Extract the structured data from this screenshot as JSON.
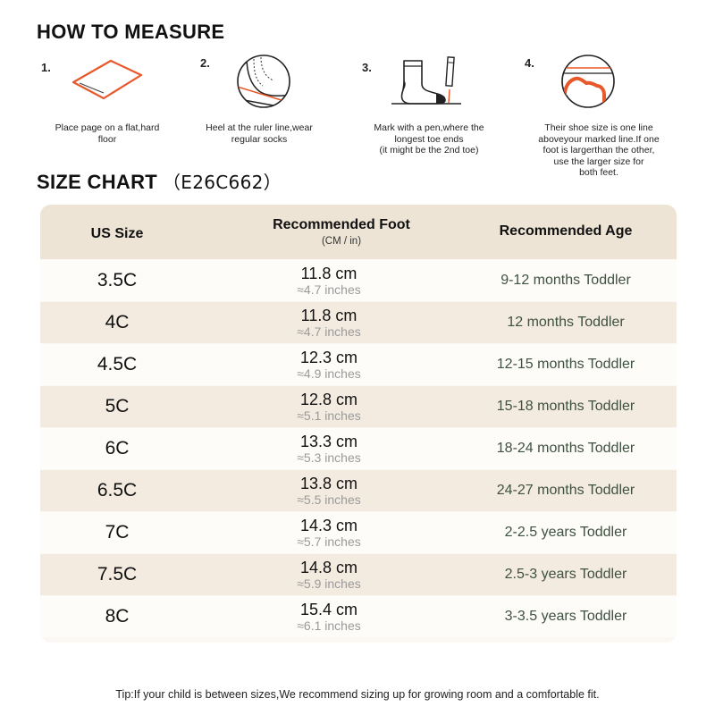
{
  "measure": {
    "title": "HOW TO MEASURE",
    "steps": [
      {
        "num": "1.",
        "icon": "paper-sheet-icon",
        "text": "Place page on a flat,hard\nfloor"
      },
      {
        "num": "2.",
        "icon": "heel-ruler-icon",
        "text": "Heel at the ruler line,wear\nregular socks"
      },
      {
        "num": "3.",
        "icon": "sock-pen-icon",
        "text": "Mark with a pen,where the\nlongest toe ends\n(it might be the 2nd toe)"
      },
      {
        "num": "4.",
        "icon": "toe-line-icon",
        "text": "Their shoe size is one line\naboveyour marked line.If one\nfoot is largerthan the other,\nuse the larger size for\nboth feet."
      }
    ]
  },
  "size_chart": {
    "title": "SIZE CHART",
    "code": "（E26C662）",
    "headers": {
      "size": "US Size",
      "foot": "Recommended Foot",
      "foot_sub": "(CM / in)",
      "age": "Recommended Age"
    },
    "rows": [
      {
        "size": "3.5C",
        "cm": "11.8 cm",
        "inch": "≈4.7 inches",
        "age": "9-12 months Toddler"
      },
      {
        "size": "4C",
        "cm": "11.8 cm",
        "inch": "≈4.7 inches",
        "age": "12 months Toddler"
      },
      {
        "size": "4.5C",
        "cm": "12.3 cm",
        "inch": "≈4.9 inches",
        "age": "12-15 months Toddler"
      },
      {
        "size": "5C",
        "cm": "12.8 cm",
        "inch": "≈5.1 inches",
        "age": "15-18 months Toddler"
      },
      {
        "size": "6C",
        "cm": "13.3 cm",
        "inch": "≈5.3 inches",
        "age": "18-24 months Toddler"
      },
      {
        "size": "6.5C",
        "cm": "13.8 cm",
        "inch": "≈5.5 inches",
        "age": "24-27 months Toddler"
      },
      {
        "size": "7C",
        "cm": "14.3 cm",
        "inch": "≈5.7 inches",
        "age": "2-2.5 years Toddler"
      },
      {
        "size": "7.5C",
        "cm": "14.8 cm",
        "inch": "≈5.9 inches",
        "age": "2.5-3 years Toddler"
      },
      {
        "size": "8C",
        "cm": "15.4 cm",
        "inch": "≈6.1 inches",
        "age": "3-3.5 years Toddler"
      }
    ]
  },
  "tip": "Tip:If your child is between sizes,We recommend sizing up for growing room and a comfortable fit.",
  "colors": {
    "accent": "#e8582a",
    "header_bg": "#ede4d6",
    "row_shade": "#f3ebe0",
    "age_text": "#3f5140"
  }
}
